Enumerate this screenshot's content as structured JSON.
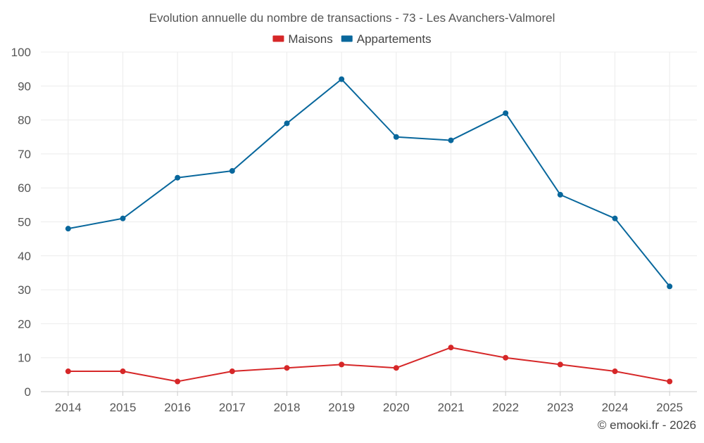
{
  "chart_data": {
    "type": "line",
    "title": "Evolution annuelle du nombre de transactions - 73 - Les Avanchers-Valmorel",
    "xlabel": "",
    "ylabel": "",
    "categories": [
      "2014",
      "2015",
      "2016",
      "2017",
      "2018",
      "2019",
      "2020",
      "2021",
      "2022",
      "2023",
      "2024",
      "2025"
    ],
    "ylim": [
      0,
      100
    ],
    "yticks": [
      0,
      10,
      20,
      30,
      40,
      50,
      60,
      70,
      80,
      90,
      100
    ],
    "grid": true,
    "legend_position": "top-center",
    "series": [
      {
        "name": "Maisons",
        "color": "#d62728",
        "values": [
          6,
          6,
          3,
          6,
          7,
          8,
          7,
          13,
          10,
          8,
          6,
          3
        ]
      },
      {
        "name": "Appartements",
        "color": "#08679c",
        "values": [
          48,
          51,
          63,
          65,
          79,
          92,
          75,
          74,
          82,
          58,
          51,
          31
        ]
      }
    ],
    "credit": "© emooki.fr - 2026"
  }
}
